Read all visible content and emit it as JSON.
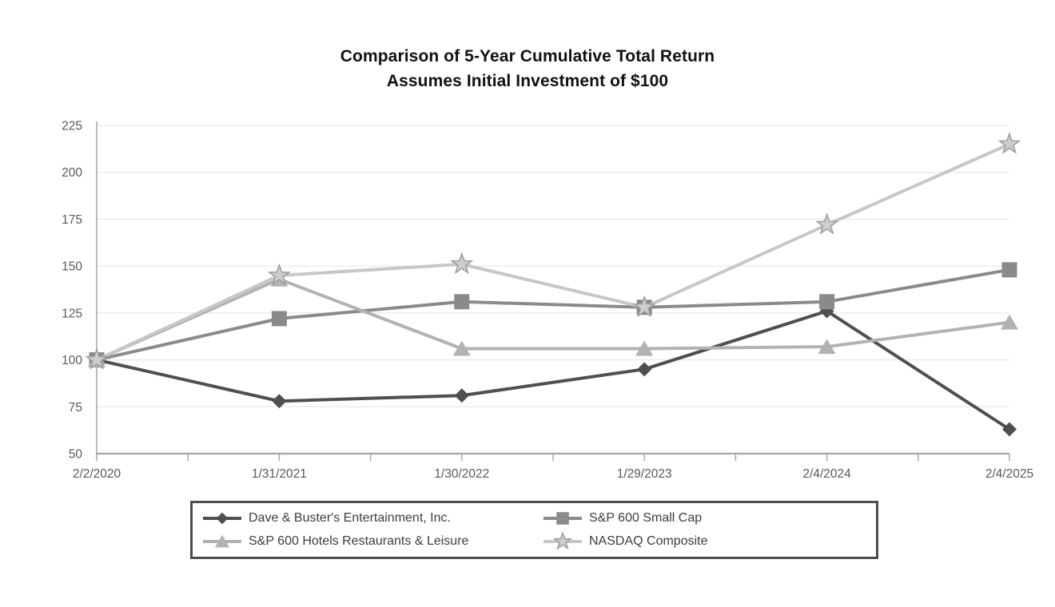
{
  "chart_data": {
    "type": "line",
    "title": "Comparison of 5-Year Cumulative Total Return",
    "subtitle": "Assumes Initial Investment of $100",
    "categories": [
      "2/2/2020",
      "1/31/2021",
      "1/30/2022",
      "1/29/2023",
      "2/4/2024",
      "2/4/2025"
    ],
    "series": [
      {
        "name": "Dave & Buster's Entertainment, Inc.",
        "marker": "diamond",
        "color": "#4f4f4f",
        "values": [
          100,
          78,
          81,
          95,
          126,
          63
        ]
      },
      {
        "name": "S&P 600 Small Cap",
        "marker": "square",
        "color": "#8a8a8a",
        "values": [
          100,
          122,
          131,
          128,
          131,
          148
        ]
      },
      {
        "name": "S&P 600 Hotels Restaurants & Leisure",
        "marker": "triangle",
        "color": "#b2b2b2",
        "values": [
          100,
          143,
          106,
          106,
          107,
          120
        ]
      },
      {
        "name": "NASDAQ Composite",
        "marker": "star",
        "color": "#c7c7c7",
        "marker_fill": "#cdcdcd",
        "marker_stroke": "#9d9d9d",
        "values": [
          100,
          145,
          151,
          128,
          172,
          215
        ]
      }
    ],
    "ylim": [
      50,
      225
    ],
    "ytick_step": 25,
    "grid": true,
    "legend_position": "bottom",
    "colors": {
      "axis": "#a6a6a6",
      "gridline": "#e9e9e9",
      "tick_label": "#595959",
      "legend_border": "#4d4d4d",
      "legend_text": "#3d3d3d",
      "title": "#111111"
    }
  }
}
